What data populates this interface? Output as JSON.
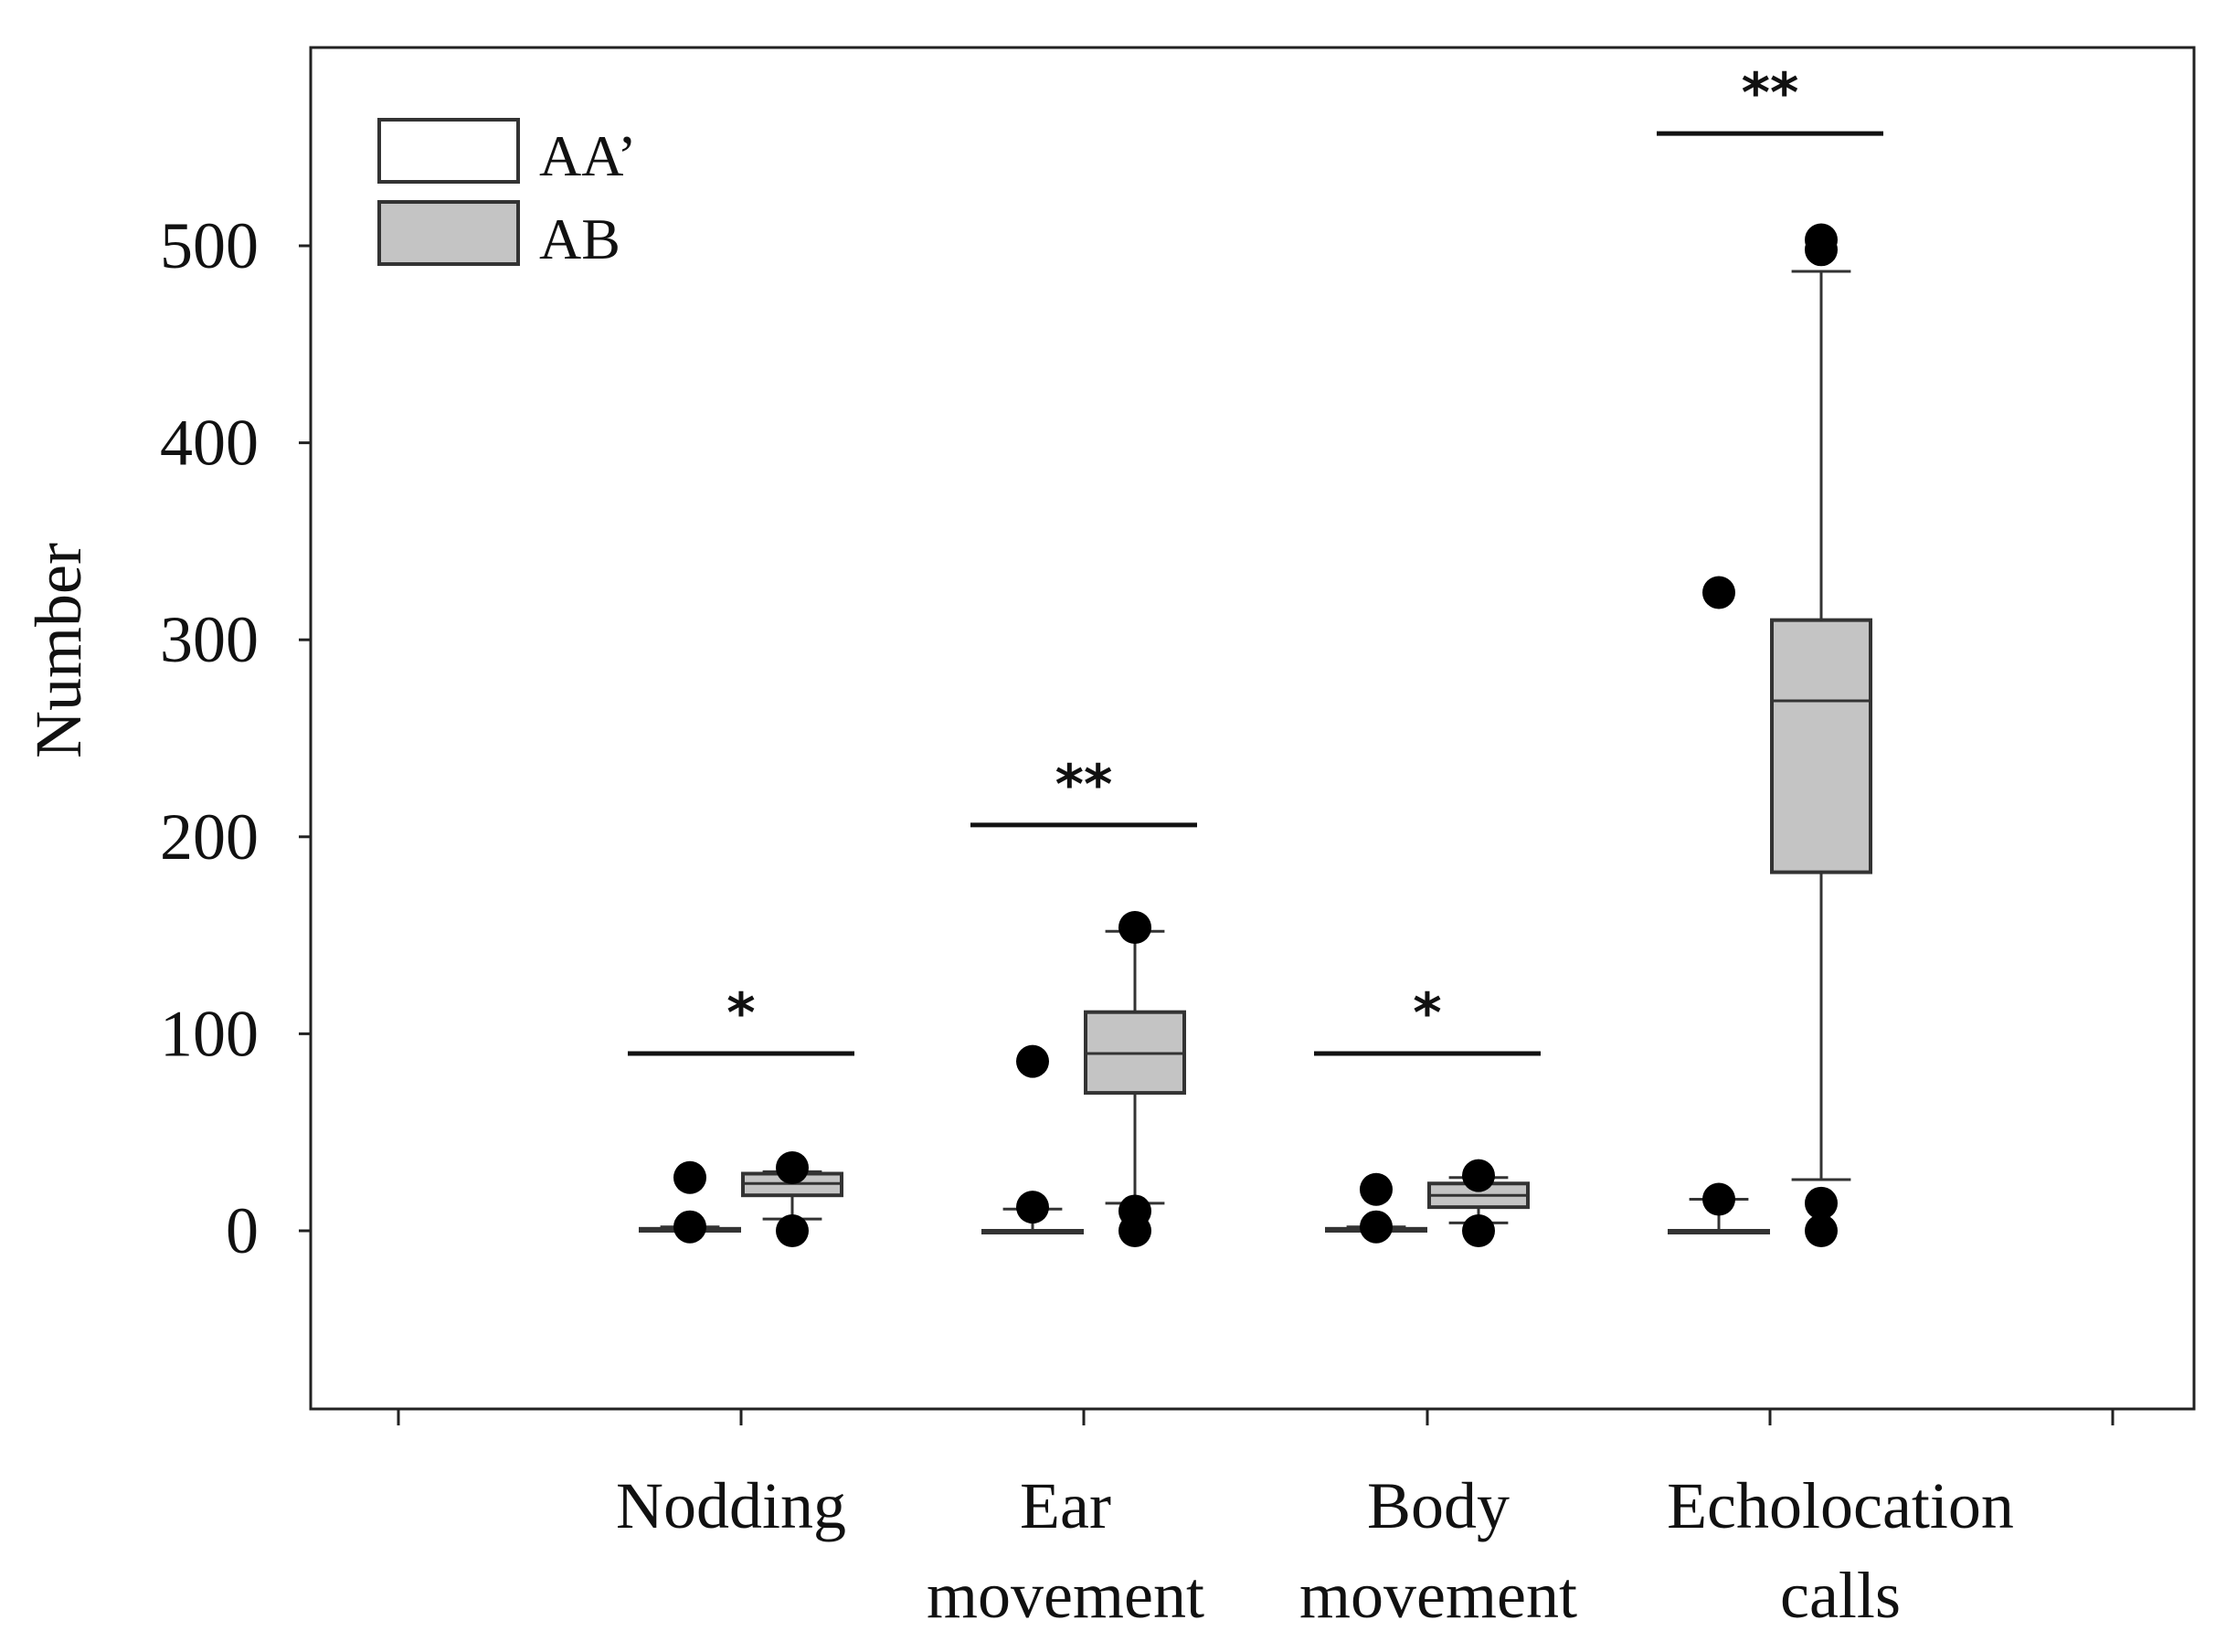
{
  "chart_data": {
    "type": "box",
    "ylabel": "Number",
    "ylim": [
      -90,
      600
    ],
    "yticks": [
      0,
      100,
      200,
      300,
      400,
      500
    ],
    "categories": [
      {
        "lines": [
          "Nodding"
        ]
      },
      {
        "lines": [
          "Ear",
          "movement"
        ]
      },
      {
        "lines": [
          "Body",
          "movement"
        ]
      },
      {
        "lines": [
          "Echolocation",
          "calls"
        ]
      }
    ],
    "legend": {
      "position": "top-left",
      "entries": [
        {
          "label": "AA’",
          "color": "#ffffff"
        },
        {
          "label": "AB",
          "color": "#c4c4c4"
        }
      ]
    },
    "series": [
      {
        "name": "AA’",
        "color": "#ffffff",
        "boxes": [
          {
            "min": 0,
            "q1": 0,
            "median": 0,
            "q3": 1,
            "max": 2,
            "outliers": [
              2,
              27
            ]
          },
          {
            "min": 0,
            "q1": 0,
            "median": 0,
            "q3": 0,
            "max": 11,
            "outliers": [
              12,
              86
            ]
          },
          {
            "min": 0,
            "q1": 0,
            "median": 0,
            "q3": 1,
            "max": 2,
            "outliers": [
              2,
              21
            ]
          },
          {
            "min": 0,
            "q1": 0,
            "median": 0,
            "q3": 0,
            "max": 16,
            "outliers": [
              16,
              324
            ]
          }
        ]
      },
      {
        "name": "AB",
        "color": "#c4c4c4",
        "boxes": [
          {
            "min": 6,
            "q1": 18,
            "median": 24,
            "q3": 29,
            "max": 30,
            "outliers": [
              0,
              32
            ]
          },
          {
            "min": 14,
            "q1": 70,
            "median": 90,
            "q3": 111,
            "max": 152,
            "outliers": [
              0,
              10,
              154
            ]
          },
          {
            "min": 4,
            "q1": 12,
            "median": 18,
            "q3": 24,
            "max": 27,
            "outliers": [
              0,
              28
            ]
          },
          {
            "min": 26,
            "q1": 182,
            "median": 269,
            "q3": 310,
            "max": 487,
            "outliers": [
              0,
              14,
              498,
              503
            ]
          }
        ]
      }
    ],
    "significance": [
      {
        "category": 0,
        "label": "*",
        "y": 90
      },
      {
        "category": 1,
        "label": "**",
        "y": 206
      },
      {
        "category": 2,
        "label": "*",
        "y": 90
      },
      {
        "category": 3,
        "label": "**",
        "y": 557
      }
    ]
  }
}
